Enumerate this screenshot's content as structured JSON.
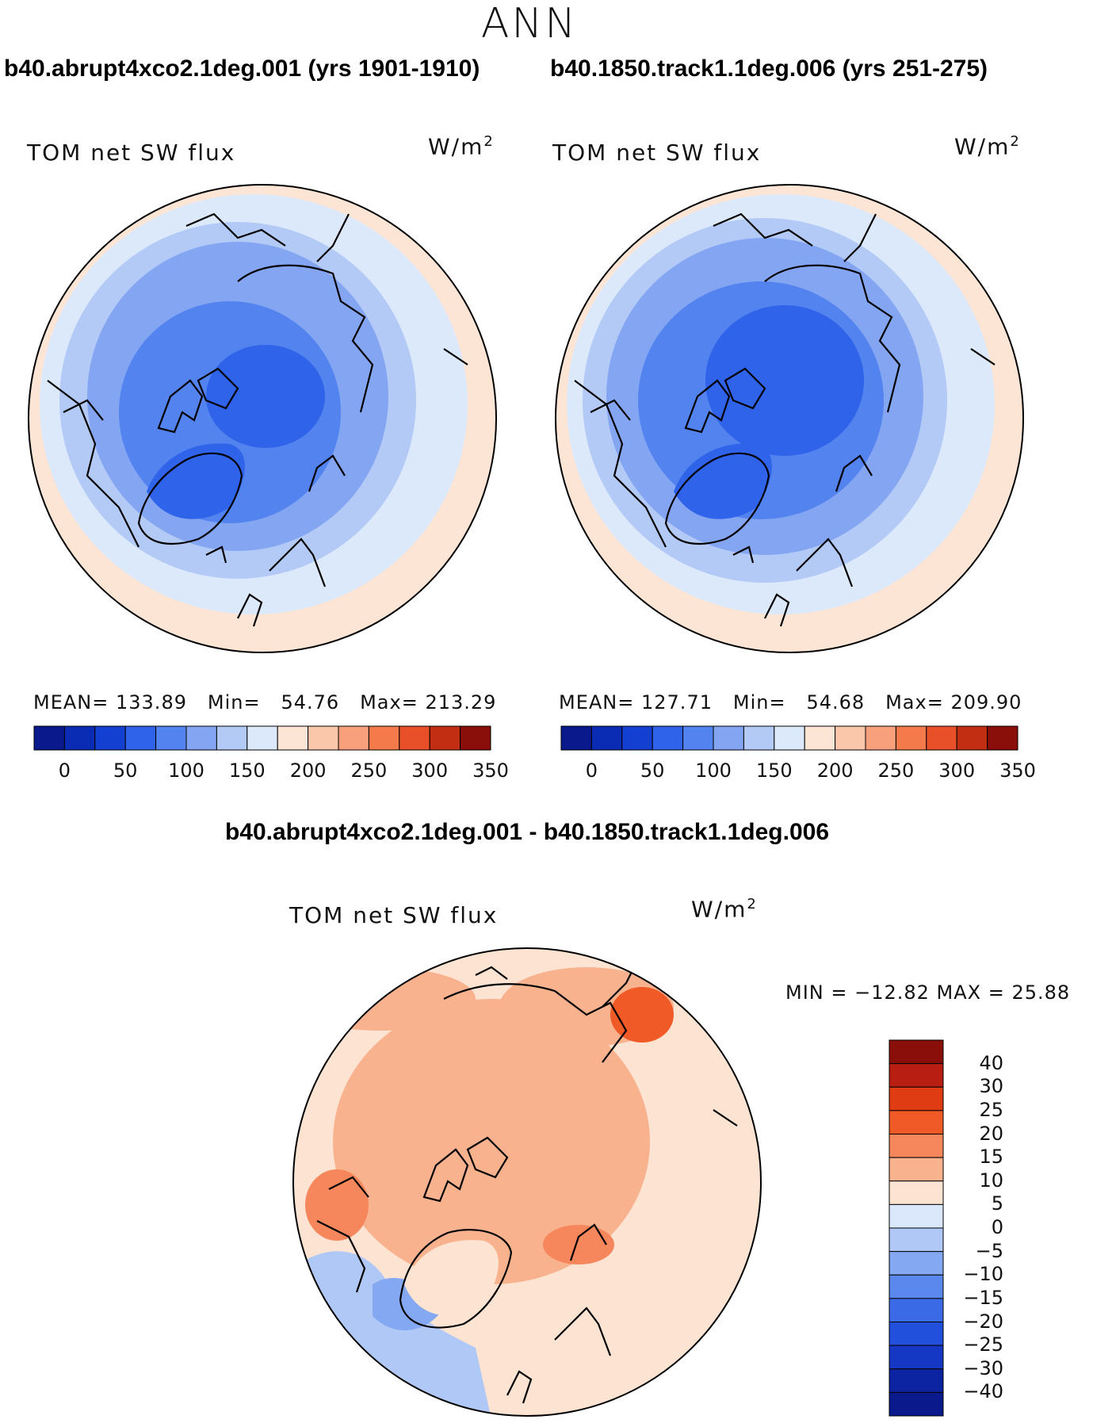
{
  "title": "ANN",
  "panels": [
    {
      "heading": "b40.abrupt4xco2.1deg.001 (yrs 1901-1910)",
      "variable": "TOM net SW flux",
      "units_base": "W/m",
      "units_exp": "2",
      "stats": {
        "mean_label": "MEAN=",
        "mean": "133.89",
        "min_label": "Min=",
        "min": "54.76",
        "max_label": "Max=",
        "max": "213.29"
      }
    },
    {
      "heading": "b40.1850.track1.1deg.006 (yrs 251-275)",
      "variable": "TOM net SW flux",
      "units_base": "W/m",
      "units_exp": "2",
      "stats": {
        "mean_label": "MEAN=",
        "mean": "127.71",
        "min_label": "Min=",
        "min": "54.68",
        "max_label": "Max=",
        "max": "209.90"
      }
    }
  ],
  "diff_panel": {
    "heading": "b40.abrupt4xco2.1deg.001 - b40.1850.track1.1deg.006",
    "variable": "TOM net SW flux",
    "units_base": "W/m",
    "units_exp": "2",
    "minmax": "MIN = −12.82 MAX =   25.88"
  },
  "colorbar_top": {
    "colors": [
      "#0a1a8c",
      "#0a2cb4",
      "#1440d2",
      "#2e63ea",
      "#5283ef",
      "#84a6f2",
      "#b3c9f6",
      "#dce9fb",
      "#fde5d6",
      "#fbc7aa",
      "#f8a07c",
      "#f47a4c",
      "#e8502a",
      "#c22e12",
      "#8a0f0a"
    ],
    "labels": [
      "0",
      "50",
      "100",
      "150",
      "200",
      "250",
      "300",
      "350"
    ]
  },
  "colorbar_diff": {
    "colors": [
      "#8a0f0a",
      "#b91e12",
      "#e03c14",
      "#f05a26",
      "#f6865c",
      "#f9b28e",
      "#fde3d2",
      "#dbe8fb",
      "#b0c8f5",
      "#84a8f1",
      "#5b88ec",
      "#3a6ae6",
      "#2151dc",
      "#1438c4",
      "#0d24a2",
      "#0a1a8c"
    ],
    "labels": [
      "40",
      "30",
      "25",
      "20",
      "15",
      "10",
      "5",
      "0",
      "−5",
      "−10",
      "−15",
      "−20",
      "−25",
      "−30",
      "−40"
    ]
  }
}
